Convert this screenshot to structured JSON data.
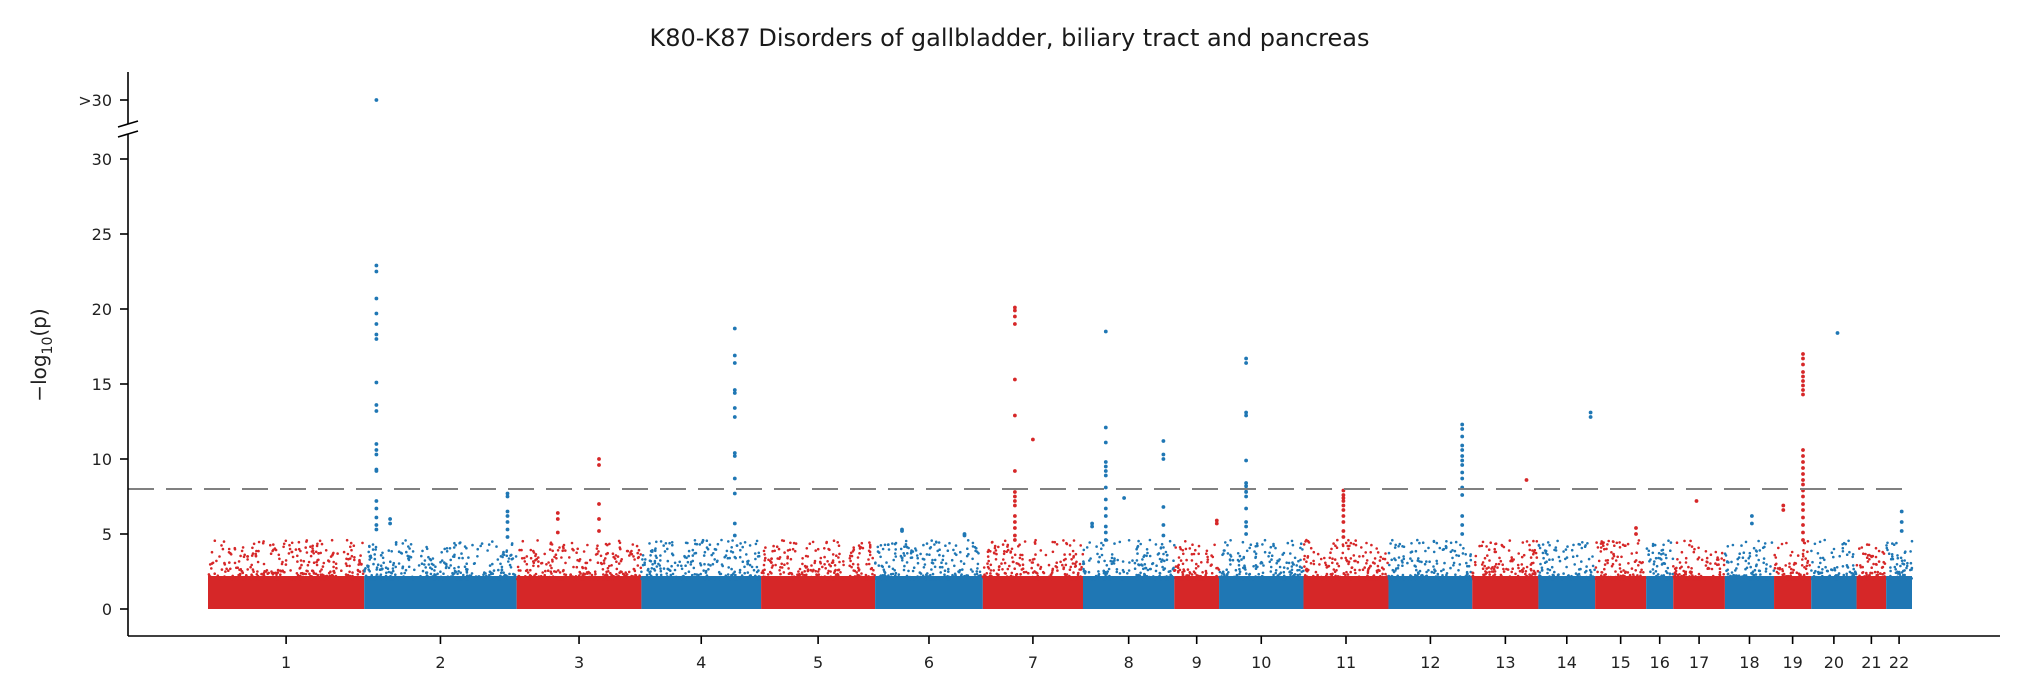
{
  "chart_data": {
    "type": "scatter",
    "title": "K80-K87 Disorders of gallbladder, biliary tract and pancreas",
    "ylabel": "−log₁₀(p)",
    "ylabel_parts": {
      "prefix": "−log",
      "sub": "10",
      "suffix": "(p)"
    },
    "xlabel": "",
    "ylim": [
      -1.5,
      30
    ],
    "yticks": [
      "0",
      "5",
      "10",
      "15",
      "20",
      "25",
      "30"
    ],
    "y_break_tick": ">30",
    "significance_line": 8,
    "colors": {
      "odd": "#d62728",
      "even": "#1f77b4",
      "threshold": "#808080",
      "axis": "#000000"
    },
    "chromosomes": [
      {
        "label": "1",
        "start": 0,
        "end": 248
      },
      {
        "label": "2",
        "start": 248,
        "end": 490
      },
      {
        "label": "3",
        "start": 490,
        "end": 688
      },
      {
        "label": "4",
        "start": 688,
        "end": 878
      },
      {
        "label": "5",
        "start": 878,
        "end": 1059
      },
      {
        "label": "6",
        "start": 1059,
        "end": 1230
      },
      {
        "label": "7",
        "start": 1230,
        "end": 1389
      },
      {
        "label": "8",
        "start": 1389,
        "end": 1534
      },
      {
        "label": "9",
        "start": 1534,
        "end": 1605
      },
      {
        "label": "10",
        "start": 1605,
        "end": 1739
      },
      {
        "label": "11",
        "start": 1739,
        "end": 1874
      },
      {
        "label": "12",
        "start": 1874,
        "end": 2007
      },
      {
        "label": "13",
        "start": 2007,
        "end": 2112
      },
      {
        "label": "14",
        "start": 2112,
        "end": 2202
      },
      {
        "label": "15",
        "start": 2202,
        "end": 2283
      },
      {
        "label": "16",
        "start": 2283,
        "end": 2326
      },
      {
        "label": "17",
        "start": 2326,
        "end": 2408
      },
      {
        "label": "18",
        "start": 2408,
        "end": 2486
      },
      {
        "label": "19",
        "start": 2486,
        "end": 2545
      },
      {
        "label": "20",
        "start": 2545,
        "end": 2617
      },
      {
        "label": "21",
        "start": 2617,
        "end": 2664
      },
      {
        "label": "22",
        "start": 2664,
        "end": 2705
      }
    ],
    "peaks": [
      {
        "chrom": "2",
        "pos": 0.08,
        "y": [
          22.9,
          22.5,
          20.7,
          19.7,
          19.0,
          18.3,
          18.0,
          15.1,
          13.6,
          13.2,
          11.0,
          10.6,
          10.3,
          9.3,
          9.2,
          7.2,
          6.7,
          6.1,
          5.6,
          5.3
        ]
      },
      {
        "chrom": "2",
        "pos": 0.08,
        "y": [
          ">30"
        ]
      },
      {
        "chrom": "2",
        "pos": 0.17,
        "y": [
          6.0,
          5.7
        ]
      },
      {
        "chrom": "2",
        "pos": 0.94,
        "y": [
          7.7,
          7.5,
          6.5,
          6.2,
          5.8,
          5.3,
          4.8
        ]
      },
      {
        "chrom": "3",
        "pos": 0.66,
        "y": [
          10.0,
          9.6,
          7.0,
          6.0,
          5.2
        ]
      },
      {
        "chrom": "3",
        "pos": 0.33,
        "y": [
          6.4,
          6.0,
          5.1
        ]
      },
      {
        "chrom": "4",
        "pos": 0.78,
        "y": [
          18.7,
          16.9,
          16.4,
          14.6,
          14.4,
          13.4,
          12.8,
          10.4,
          10.2,
          8.7,
          7.7,
          5.7,
          4.9
        ]
      },
      {
        "chrom": "6",
        "pos": 0.25,
        "y": [
          5.3,
          5.2
        ]
      },
      {
        "chrom": "6",
        "pos": 0.83,
        "y": [
          5.0,
          4.9
        ]
      },
      {
        "chrom": "7",
        "pos": 0.32,
        "y": [
          20.1,
          19.9,
          19.5,
          19.0,
          15.3,
          12.9,
          9.2,
          7.8,
          7.5,
          7.2,
          6.9,
          6.2,
          5.8,
          5.4,
          4.9,
          4.6
        ]
      },
      {
        "chrom": "7",
        "pos": 0.5,
        "y": [
          11.3
        ]
      },
      {
        "chrom": "8",
        "pos": 0.25,
        "y": [
          18.5,
          12.1,
          11.1,
          9.8,
          9.5,
          9.2,
          8.9,
          8.1,
          7.3,
          6.7,
          6.2,
          5.5,
          5.1,
          4.6
        ]
      },
      {
        "chrom": "8",
        "pos": 0.1,
        "y": [
          5.7,
          5.5
        ]
      },
      {
        "chrom": "8",
        "pos": 0.45,
        "y": [
          7.4
        ]
      },
      {
        "chrom": "8",
        "pos": 0.88,
        "y": [
          11.2,
          10.3,
          10.0,
          6.8,
          5.6,
          4.9
        ]
      },
      {
        "chrom": "9",
        "pos": 0.95,
        "y": [
          5.9,
          5.7
        ]
      },
      {
        "chrom": "10",
        "pos": 0.32,
        "y": [
          16.7,
          16.4,
          13.1,
          12.9,
          9.9,
          8.4,
          8.2,
          8.0,
          7.8,
          7.5,
          6.7,
          5.8,
          5.5,
          5.0
        ]
      },
      {
        "chrom": "11",
        "pos": 0.47,
        "y": [
          7.9,
          7.6,
          7.4,
          7.2,
          6.9,
          6.6,
          6.2,
          5.8,
          5.2,
          4.8
        ]
      },
      {
        "chrom": "12",
        "pos": 0.88,
        "y": [
          12.3,
          12.0,
          11.5,
          10.9,
          10.6,
          10.2,
          9.9,
          9.6,
          9.1,
          8.7,
          8.1,
          7.6,
          6.2,
          5.6,
          5.0
        ]
      },
      {
        "chrom": "13",
        "pos": 0.82,
        "y": [
          8.6
        ]
      },
      {
        "chrom": "14",
        "pos": 0.92,
        "y": [
          13.1,
          12.8
        ]
      },
      {
        "chrom": "15",
        "pos": 0.8,
        "y": [
          5.4,
          5.0
        ]
      },
      {
        "chrom": "17",
        "pos": 0.45,
        "y": [
          7.2
        ]
      },
      {
        "chrom": "18",
        "pos": 0.55,
        "y": [
          6.2,
          5.7
        ]
      },
      {
        "chrom": "19",
        "pos": 0.25,
        "y": [
          6.9,
          6.6
        ]
      },
      {
        "chrom": "19",
        "pos": 0.78,
        "y": [
          17.0,
          16.7,
          16.3,
          15.8,
          15.5,
          15.2,
          14.9,
          14.6,
          14.3,
          10.6,
          10.2,
          9.8,
          9.4,
          9.0,
          8.6,
          8.3,
          7.9,
          7.5,
          7.0,
          6.6,
          6.1,
          5.6,
          5.1,
          4.6
        ]
      },
      {
        "chrom": "20",
        "pos": 0.58,
        "y": [
          18.4
        ]
      },
      {
        "chrom": "22",
        "pos": 0.6,
        "y": [
          6.5,
          5.8,
          5.2
        ]
      }
    ]
  }
}
